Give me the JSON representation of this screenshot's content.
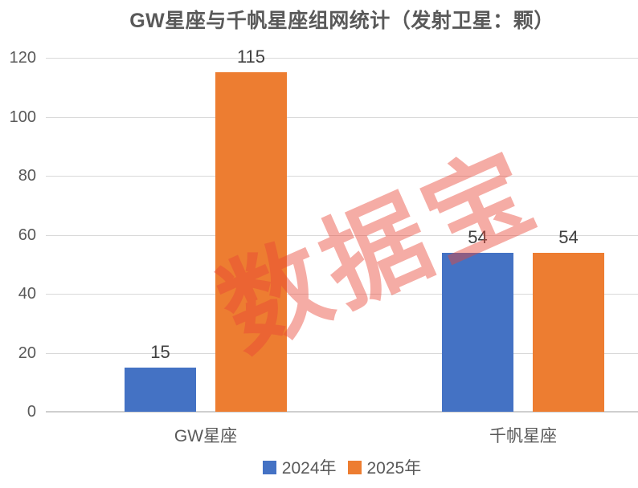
{
  "title": "GW星座与千帆星座组网统计（发射卫星：颗）",
  "watermark": "数据宝",
  "colors": {
    "series_2024": "#4472C4",
    "series_2025": "#ED7D31",
    "text": "#595959",
    "data_label": "#404040",
    "gridline": "#d9d9d9",
    "watermark": "#E94637"
  },
  "legend": {
    "items": [
      {
        "label": "2024年",
        "color": "#4472C4"
      },
      {
        "label": "2025年",
        "color": "#ED7D31"
      }
    ]
  },
  "chart_data": {
    "type": "bar",
    "title": "GW星座与千帆星座组网统计（发射卫星：颗）",
    "categories": [
      "GW星座",
      "千帆星座"
    ],
    "series": [
      {
        "name": "2024年",
        "color": "#4472C4",
        "values": [
          15,
          54
        ]
      },
      {
        "name": "2025年",
        "color": "#ED7D31",
        "values": [
          115,
          54
        ]
      }
    ],
    "xlabel": "",
    "ylabel": "",
    "ylim": [
      0,
      120
    ],
    "yticks": [
      0,
      20,
      40,
      60,
      80,
      100,
      120
    ],
    "grid": true,
    "legend_position": "bottom",
    "data_labels": true
  }
}
